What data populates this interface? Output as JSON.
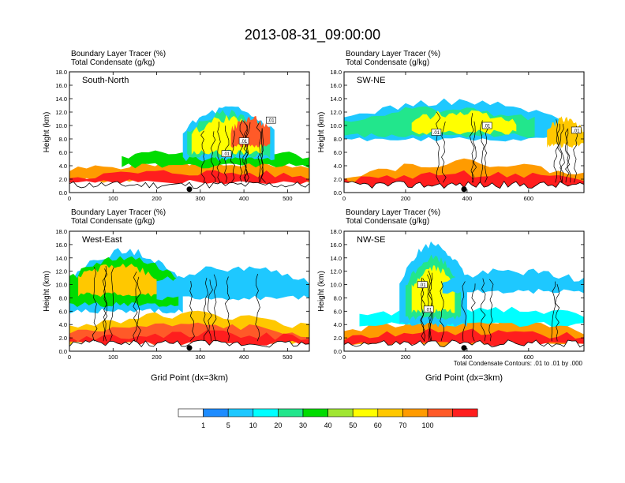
{
  "title": "2013-08-31_09:00:00",
  "panel_header_line1": "Boundary Layer Tracer   (%)",
  "panel_header_line2": "Total Condensate   (g/kg)",
  "contour_note": "Total Condensate Contours: .01 to .01 by .000",
  "colors": {
    "levels": [
      "#ffffff",
      "#1e8cff",
      "#1ec8ff",
      "#00ffff",
      "#22e68c",
      "#00dc00",
      "#a0e632",
      "#ffff00",
      "#ffc800",
      "#ff9b00",
      "#ff5a28",
      "#ff1e1e"
    ],
    "terrain": "#000000"
  },
  "chart_data": [
    {
      "type": "heatmap",
      "panel": "South-North",
      "label": "South-North",
      "xlabel": "",
      "ylabel": "Height (km)",
      "xlim": [
        0,
        550
      ],
      "ylim": [
        0,
        18
      ],
      "xticks": [
        "0",
        "100",
        "200",
        "300",
        "400",
        "500"
      ],
      "yticks": [
        "0.0",
        "2.0",
        "4.0",
        "6.0",
        "8.0",
        "10.0",
        "12.0",
        "14.0",
        "16.0",
        "18.0"
      ],
      "marker_x": 275,
      "contour_labels": [
        {
          "x": 360,
          "y": 5.8,
          "text": ".01"
        },
        {
          "x": 400,
          "y": 7.7,
          "text": ".01"
        },
        {
          "x": 462,
          "y": 10.8,
          "text": ".01"
        }
      ],
      "blobs": [
        {
          "x0": 0,
          "x1": 550,
          "ybase": 1.8,
          "top": 4.5,
          "lvl": 9
        },
        {
          "x0": 0,
          "x1": 550,
          "ybase": 1.6,
          "top": 3.0,
          "lvl": 11
        },
        {
          "x0": 120,
          "x1": 550,
          "ybase": 4.0,
          "top": 6.3,
          "lvl": 5
        },
        {
          "x0": 260,
          "x1": 470,
          "ybase": 5.0,
          "top": 12.5,
          "lvl": 2
        },
        {
          "x0": 270,
          "x1": 460,
          "ybase": 5.5,
          "top": 11.8,
          "lvl": 4
        },
        {
          "x0": 280,
          "x1": 440,
          "ybase": 6.0,
          "top": 11.0,
          "lvl": 7
        },
        {
          "x0": 370,
          "x1": 460,
          "ybase": 7.0,
          "top": 11.0,
          "lvl": 10
        }
      ]
    },
    {
      "type": "heatmap",
      "panel": "SW-NE",
      "label": "SW-NE",
      "xlabel": "",
      "ylabel": "Height (km)",
      "xlim": [
        0,
        780
      ],
      "ylim": [
        0,
        18
      ],
      "xticks": [
        "0",
        "200",
        "400",
        "600"
      ],
      "yticks": [
        "0.0",
        "2.0",
        "4.0",
        "6.0",
        "8.0",
        "10.0",
        "12.0",
        "14.0",
        "16.0",
        "18.0"
      ],
      "marker_x": 390,
      "contour_labels": [
        {
          "x": 300,
          "y": 9.0,
          "text": ".01"
        },
        {
          "x": 465,
          "y": 10.0,
          "text": ".01"
        },
        {
          "x": 755,
          "y": 9.3,
          "text": ".01"
        }
      ],
      "blobs": [
        {
          "x0": 0,
          "x1": 780,
          "ybase": 0.2,
          "top": 4.5,
          "lvl": 9
        },
        {
          "x0": 0,
          "x1": 780,
          "ybase": 0.2,
          "top": 2.8,
          "lvl": 11
        },
        {
          "x0": 0,
          "x1": 700,
          "ybase": 8.0,
          "top": 13.5,
          "lvl": 2
        },
        {
          "x0": 0,
          "x1": 620,
          "ybase": 8.5,
          "top": 12.5,
          "lvl": 4
        },
        {
          "x0": 220,
          "x1": 560,
          "ybase": 9.0,
          "top": 12.0,
          "lvl": 7
        },
        {
          "x0": 660,
          "x1": 780,
          "ybase": 7.0,
          "top": 11.0,
          "lvl": 8
        }
      ]
    },
    {
      "type": "heatmap",
      "panel": "West-East",
      "label": "West-East",
      "xlabel": "Grid Point (dx=3km)",
      "ylabel": "Height (km)",
      "xlim": [
        0,
        550
      ],
      "ylim": [
        0,
        18
      ],
      "xticks": [
        "0",
        "100",
        "200",
        "300",
        "400",
        "500"
      ],
      "yticks": [
        "0.0",
        "2.0",
        "4.0",
        "6.0",
        "8.0",
        "10.0",
        "12.0",
        "14.0",
        "16.0",
        "18.0"
      ],
      "marker_x": 275,
      "contour_labels": [],
      "blobs": [
        {
          "x0": 0,
          "x1": 550,
          "ybase": 1.2,
          "top": 5.5,
          "lvl": 8
        },
        {
          "x0": 0,
          "x1": 550,
          "ybase": 1.2,
          "top": 3.8,
          "lvl": 10
        },
        {
          "x0": 0,
          "x1": 550,
          "ybase": 1.2,
          "top": 2.6,
          "lvl": 11
        },
        {
          "x0": 0,
          "x1": 260,
          "ybase": 6.0,
          "top": 15.0,
          "lvl": 2
        },
        {
          "x0": 0,
          "x1": 250,
          "ybase": 7.0,
          "top": 14.0,
          "lvl": 5
        },
        {
          "x0": 20,
          "x1": 200,
          "ybase": 8.5,
          "top": 13.0,
          "lvl": 8
        },
        {
          "x0": 200,
          "x1": 550,
          "ybase": 8.0,
          "top": 12.5,
          "lvl": 2
        }
      ]
    },
    {
      "type": "heatmap",
      "panel": "NW-SE",
      "label": "NW-SE",
      "xlabel": "Grid Point (dx=3km)",
      "ylabel": "Height (km)",
      "xlim": [
        0,
        780
      ],
      "ylim": [
        0,
        18
      ],
      "xticks": [
        "0",
        "200",
        "400",
        "600"
      ],
      "yticks": [
        "0.0",
        "2.0",
        "4.0",
        "6.0",
        "8.0",
        "10.0",
        "12.0",
        "14.0",
        "16.0",
        "18.0"
      ],
      "marker_x": 390,
      "contour_labels": [
        {
          "x": 255,
          "y": 10.0,
          "text": ".01"
        },
        {
          "x": 275,
          "y": 6.3,
          "text": ".01"
        }
      ],
      "blobs": [
        {
          "x0": 0,
          "x1": 780,
          "ybase": 1.0,
          "top": 4.8,
          "lvl": 9
        },
        {
          "x0": 0,
          "x1": 780,
          "ybase": 1.0,
          "top": 3.0,
          "lvl": 11
        },
        {
          "x0": 50,
          "x1": 780,
          "ybase": 4.0,
          "top": 6.5,
          "lvl": 3
        },
        {
          "x0": 180,
          "x1": 400,
          "ybase": 4.0,
          "top": 16.0,
          "lvl": 2
        },
        {
          "x0": 200,
          "x1": 380,
          "ybase": 5.0,
          "top": 14.0,
          "lvl": 4
        },
        {
          "x0": 220,
          "x1": 360,
          "ybase": 6.0,
          "top": 12.5,
          "lvl": 7
        },
        {
          "x0": 320,
          "x1": 780,
          "ybase": 9.0,
          "top": 12.0,
          "lvl": 2
        }
      ]
    }
  ],
  "colorbar": {
    "labels": [
      "1",
      "5",
      "10",
      "20",
      "30",
      "40",
      "50",
      "60",
      "70",
      "100"
    ]
  }
}
